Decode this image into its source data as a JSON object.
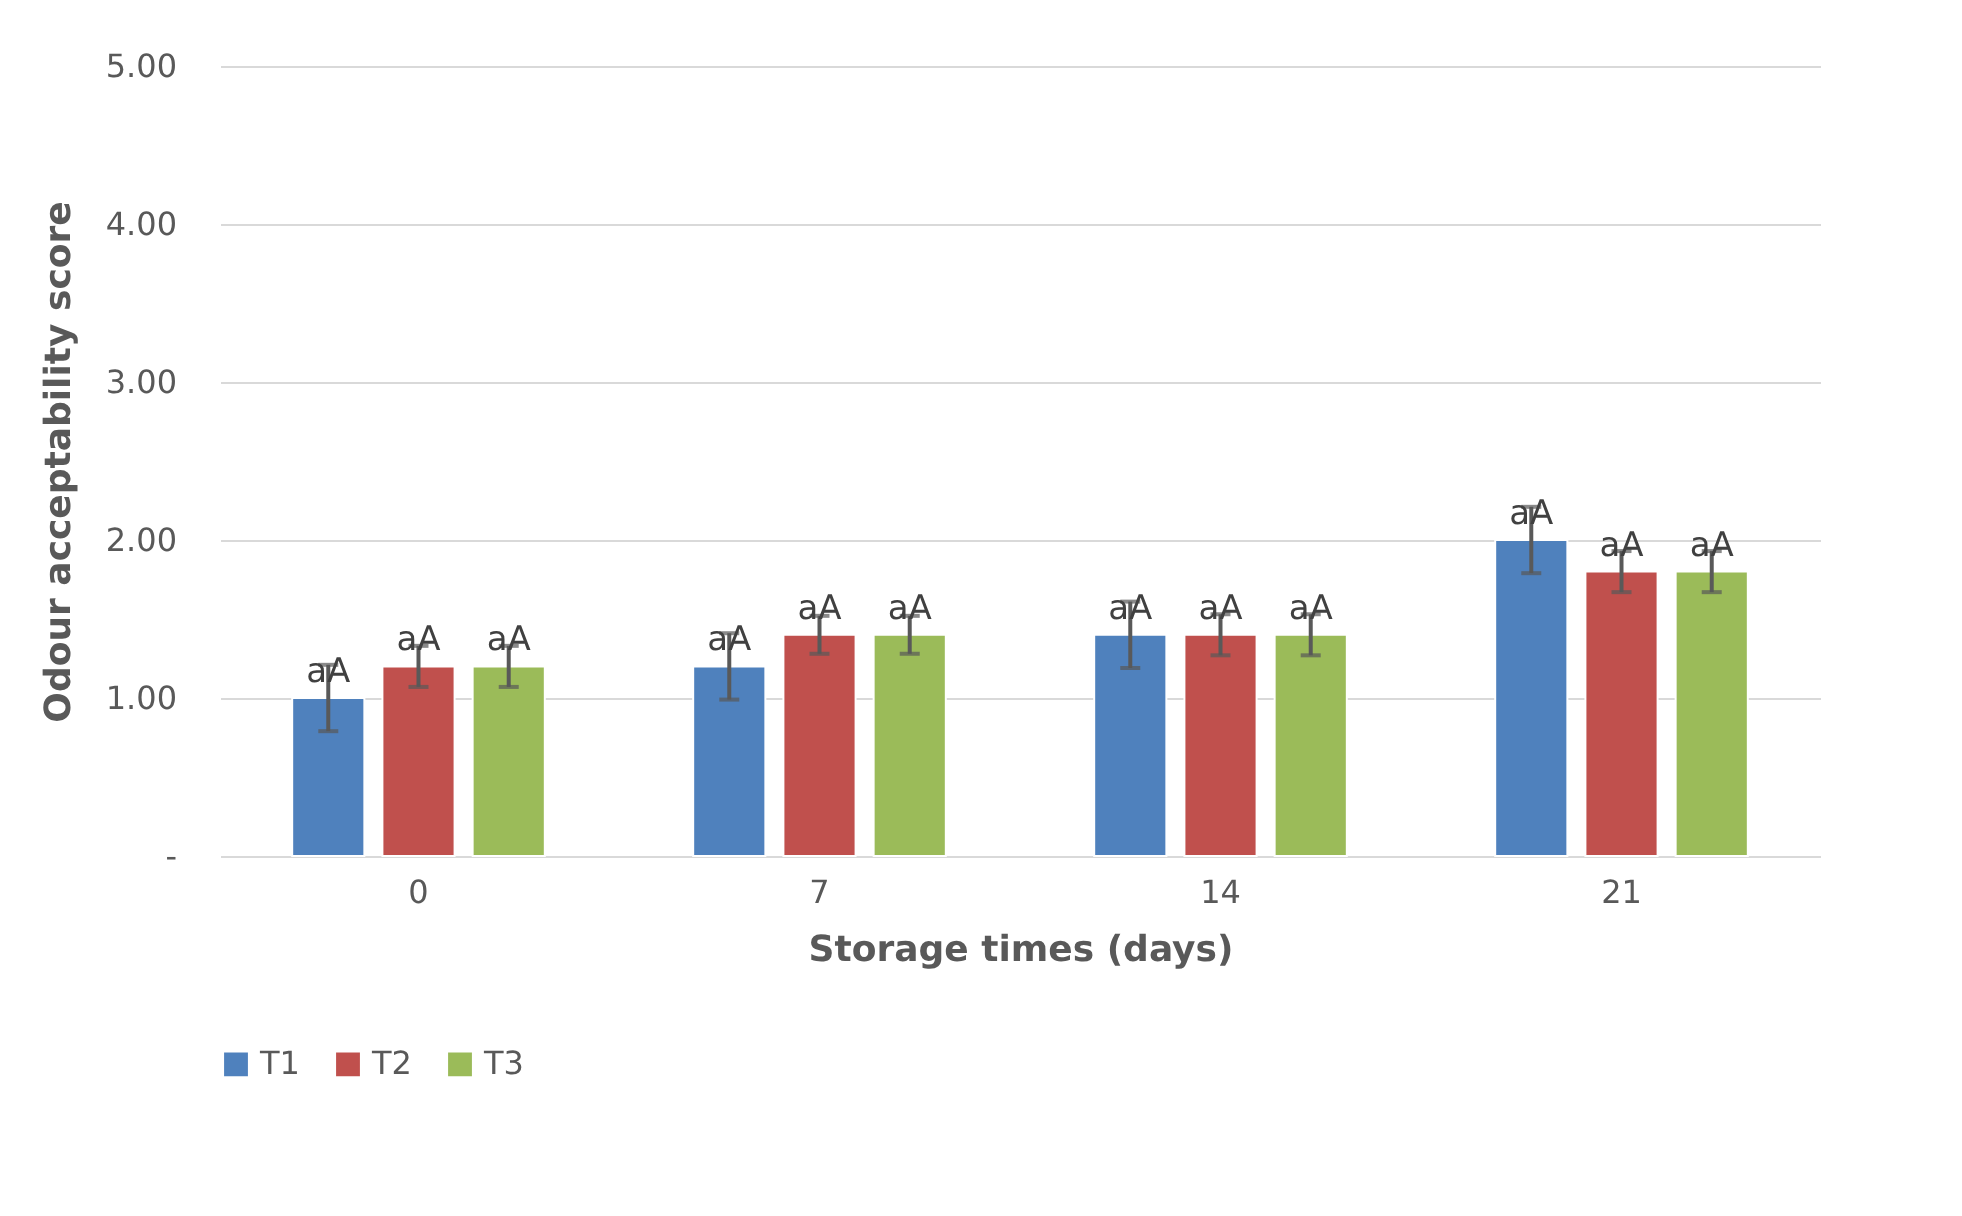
{
  "chart_data": {
    "type": "bar",
    "xlabel": "Storage times (days)",
    "ylabel": "Odour acceptability score",
    "categories": [
      "0",
      "7",
      "14",
      "21"
    ],
    "series": [
      {
        "name": "T1",
        "color": "#4f81bd",
        "values": [
          1.0,
          1.2,
          1.4,
          2.0
        ],
        "errors": [
          0.21,
          0.21,
          0.21,
          0.21
        ],
        "value_labels": [
          "aA",
          "aA",
          "aA",
          "aA"
        ]
      },
      {
        "name": "T2",
        "color": "#c0504d",
        "values": [
          1.2,
          1.4,
          1.4,
          1.8
        ],
        "errors": [
          0.13,
          0.12,
          0.13,
          0.13
        ],
        "value_labels": [
          "aA",
          "aA",
          "aA",
          "aA"
        ]
      },
      {
        "name": "T3",
        "color": "#9bbb59",
        "values": [
          1.2,
          1.4,
          1.4,
          1.8
        ],
        "errors": [
          0.13,
          0.12,
          0.13,
          0.13
        ],
        "value_labels": [
          "aA",
          "aA",
          "aA",
          "aA"
        ]
      }
    ],
    "ylim": [
      0,
      5
    ],
    "yticks": [
      {
        "value": 0,
        "label": "-"
      },
      {
        "value": 1,
        "label": "1.00"
      },
      {
        "value": 2,
        "label": "2.00"
      },
      {
        "value": 3,
        "label": "3.00"
      },
      {
        "value": 4,
        "label": "4.00"
      },
      {
        "value": 5,
        "label": "5.00"
      }
    ],
    "grid": "y",
    "legend": "bottom"
  }
}
